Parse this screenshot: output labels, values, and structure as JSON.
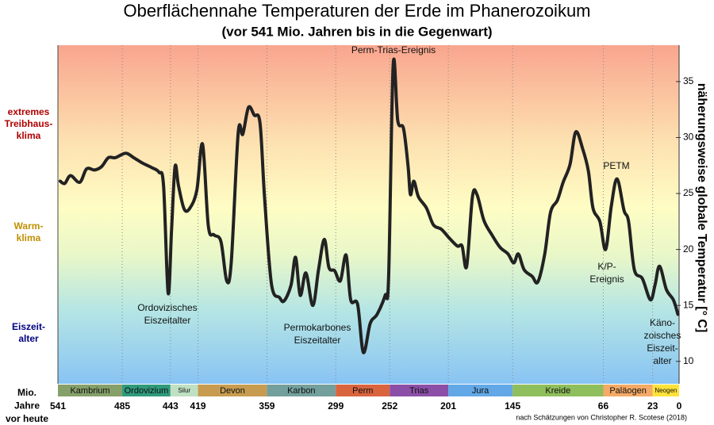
{
  "chart_data": {
    "type": "line",
    "title": "Oberflächennahe Temperaturen der Erde im Phanerozoikum",
    "subtitle": "(vor 541 Mio. Jahren bis in die Gegenwart)",
    "y_label": "näherungsweise  globale Temperatur [° C]",
    "x_label": [
      "Mio.",
      "Jahre",
      "vor heute"
    ],
    "source": "nach Schätzungen von Christopher R. Scotese (2018)",
    "color": "#222222",
    "x": [
      539,
      535,
      530,
      522,
      516,
      509,
      503,
      497,
      491,
      482,
      475,
      467,
      459,
      453,
      449,
      445,
      442,
      439,
      436,
      431,
      426,
      420,
      415,
      410,
      405,
      399,
      394,
      390,
      384,
      380,
      375,
      370,
      365,
      361,
      355,
      348,
      344,
      338,
      334,
      330,
      325,
      319,
      314,
      309,
      305,
      300,
      295,
      290,
      286,
      280,
      275,
      269,
      263,
      256,
      253,
      249,
      245,
      240,
      236,
      234,
      231,
      227,
      220,
      214,
      207,
      200,
      193,
      189,
      185,
      180,
      176,
      170,
      163,
      156,
      149,
      144,
      140,
      135,
      128,
      123,
      117,
      112,
      106,
      101,
      95,
      90,
      84,
      79,
      75,
      69,
      64,
      59,
      54,
      48,
      44,
      39,
      32,
      25,
      21,
      17,
      11,
      5,
      1
    ],
    "values": [
      26.1,
      25.9,
      26.6,
      26.0,
      27.2,
      27.1,
      27.4,
      28.2,
      28.2,
      28.6,
      28.2,
      27.7,
      27.3,
      26.9,
      25.7,
      16.1,
      21.8,
      27.4,
      25.7,
      23.6,
      23.7,
      25.3,
      29.4,
      22.1,
      21.3,
      20.7,
      17.2,
      18.9,
      30.4,
      30.3,
      32.7,
      32.0,
      31.3,
      24.6,
      16.9,
      15.7,
      15.4,
      16.8,
      19.3,
      15.9,
      17.9,
      15.0,
      18.2,
      20.9,
      18.4,
      18.1,
      17.2,
      19.5,
      15.5,
      15.1,
      10.8,
      13.4,
      14.2,
      15.9,
      17.5,
      36.5,
      31.5,
      30.8,
      27.4,
      24.9,
      26.1,
      24.7,
      23.7,
      22.2,
      21.8,
      21.0,
      20.3,
      20.3,
      18.5,
      24.7,
      24.9,
      22.6,
      21.3,
      20.2,
      19.6,
      18.8,
      19.6,
      18.2,
      17.6,
      17.1,
      19.6,
      23.3,
      24.4,
      26.0,
      27.6,
      30.5,
      29.0,
      27.0,
      23.7,
      22.5,
      20.0,
      23.9,
      26.3,
      23.5,
      22.5,
      18.2,
      17.4,
      15.5,
      16.8,
      18.5,
      16.4,
      15.5,
      14.2
    ],
    "xlim": [
      541,
      0
    ],
    "xticks": [
      541,
      485,
      443,
      419,
      359,
      299,
      252,
      201,
      145,
      66,
      23,
      0
    ],
    "ylim": [
      8,
      38.25
    ],
    "yticks": [
      10,
      15,
      20,
      25,
      30,
      35
    ],
    "periods": [
      {
        "name": "Kambrium",
        "color": "#86a06a"
      },
      {
        "name": "Ordovizium",
        "color": "#2f9a7c"
      },
      {
        "name": "Silur",
        "color": "#bfe0c2"
      },
      {
        "name": "Devon",
        "color": "#c89c50"
      },
      {
        "name": "Karbon",
        "color": "#73a09c"
      },
      {
        "name": "Perm",
        "color": "#d9643e"
      },
      {
        "name": "Trias",
        "color": "#8b4fa8"
      },
      {
        "name": "Jura",
        "color": "#62a8e6"
      },
      {
        "name": "Kreide",
        "color": "#8fbf5c"
      },
      {
        "name": "Paläogen",
        "color": "#f5aa66"
      },
      {
        "name": "Neogen",
        "color": "#ffe33a"
      }
    ],
    "climate_zones": [
      {
        "lines": [
          "extremes",
          "Treibhaus-",
          "klima"
        ],
        "color": "#b00000"
      },
      {
        "lines": [
          "Warm-",
          "klima"
        ],
        "color": "#c09000"
      },
      {
        "lines": [
          "Eiszeit-",
          "alter"
        ],
        "color": "#000080"
      }
    ],
    "annotations": [
      {
        "lines": [
          "Perm-Trias-Ereignis"
        ]
      },
      {
        "lines": [
          "Ordovizisches",
          "Eiszeitalter"
        ]
      },
      {
        "lines": [
          "Permokarbones",
          "Eiszeitalter"
        ]
      },
      {
        "lines": [
          "PETM"
        ]
      },
      {
        "lines": [
          "K/P-",
          "Ereignis"
        ]
      },
      {
        "lines": [
          "Käno-",
          "zoisches",
          "Eiszeit-",
          "alter"
        ]
      }
    ]
  }
}
